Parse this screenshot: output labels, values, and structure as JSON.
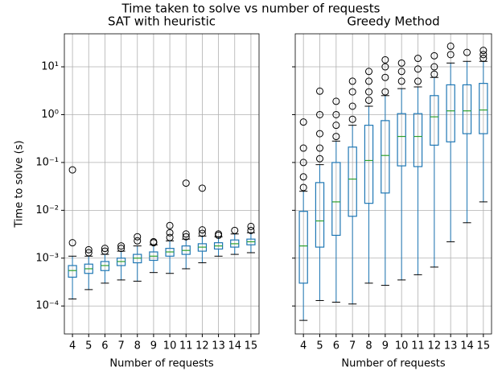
{
  "title": "Time taken to solve vs number of requests",
  "chart_data": [
    {
      "type": "box",
      "title": "SAT with heuristic",
      "xlabel": "Number of requests",
      "ylabel": "Time to solve (s)",
      "categories": [
        "4",
        "5",
        "6",
        "7",
        "8",
        "9",
        "10",
        "11",
        "12",
        "13",
        "14",
        "15"
      ],
      "log_y": true,
      "grid": true,
      "box_color": "#1f77b4",
      "median_color": "#2ca02c",
      "flier_color": "#000000",
      "ylim": [
        2.6e-05,
        49
      ],
      "yticks": [
        {
          "value": 0.0001,
          "label": "10⁻⁴"
        },
        {
          "value": 0.001,
          "label": "10⁻³"
        },
        {
          "value": 0.01,
          "label": "10⁻²"
        },
        {
          "value": 0.1,
          "label": "10⁻¹"
        },
        {
          "value": 1,
          "label": "10⁰"
        },
        {
          "value": 10,
          "label": "10¹"
        }
      ],
      "boxes": [
        {
          "whislo": 0.00014,
          "q1": 0.0004,
          "med": 0.00055,
          "q3": 0.0007,
          "whishi": 0.0011,
          "fliers": [
            0.0021,
            0.07
          ]
        },
        {
          "whislo": 0.00022,
          "q1": 0.00048,
          "med": 0.0006,
          "q3": 0.00075,
          "whishi": 0.0011,
          "fliers": [
            0.0013,
            0.0015
          ]
        },
        {
          "whislo": 0.0003,
          "q1": 0.00055,
          "med": 0.0007,
          "q3": 0.00085,
          "whishi": 0.0012,
          "fliers": [
            0.0014,
            0.0016
          ]
        },
        {
          "whislo": 0.00035,
          "q1": 0.0007,
          "med": 0.00085,
          "q3": 0.001,
          "whishi": 0.0014,
          "fliers": [
            0.0016,
            0.0018
          ]
        },
        {
          "whislo": 0.00033,
          "q1": 0.0008,
          "med": 0.001,
          "q3": 0.0012,
          "whishi": 0.0018,
          "fliers": [
            0.0023,
            0.0028
          ]
        },
        {
          "whislo": 0.0005,
          "q1": 0.0009,
          "med": 0.0011,
          "q3": 0.00135,
          "whishi": 0.0019,
          "fliers": [
            0.0021,
            0.0022
          ]
        },
        {
          "whislo": 0.00048,
          "q1": 0.0011,
          "med": 0.00135,
          "q3": 0.0016,
          "whishi": 0.0023,
          "fliers": [
            0.0027,
            0.0034,
            0.0048
          ]
        },
        {
          "whislo": 0.0006,
          "q1": 0.0012,
          "med": 0.00145,
          "q3": 0.0018,
          "whishi": 0.0025,
          "fliers": [
            0.0028,
            0.0032,
            0.037
          ]
        },
        {
          "whislo": 0.0008,
          "q1": 0.0014,
          "med": 0.0017,
          "q3": 0.002,
          "whishi": 0.0029,
          "fliers": [
            0.0033,
            0.0039,
            0.029
          ]
        },
        {
          "whislo": 0.0011,
          "q1": 0.00155,
          "med": 0.0018,
          "q3": 0.0021,
          "whishi": 0.0028,
          "fliers": [
            0.003,
            0.0032
          ]
        },
        {
          "whislo": 0.0012,
          "q1": 0.0017,
          "med": 0.002,
          "q3": 0.0024,
          "whishi": 0.0032,
          "fliers": [
            0.0038
          ]
        },
        {
          "whislo": 0.0013,
          "q1": 0.0019,
          "med": 0.0022,
          "q3": 0.0025,
          "whishi": 0.0034,
          "fliers": [
            0.0038,
            0.0046
          ]
        }
      ]
    },
    {
      "type": "box",
      "title": "Greedy Method",
      "xlabel": "Number of requests",
      "categories": [
        "4",
        "5",
        "6",
        "7",
        "8",
        "9",
        "10",
        "11",
        "12",
        "13",
        "14",
        "15"
      ],
      "log_y": true,
      "grid": true,
      "sharey": true,
      "box_color": "#1f77b4",
      "median_color": "#2ca02c",
      "flier_color": "#000000",
      "boxes": [
        {
          "whislo": 5e-05,
          "q1": 0.0003,
          "med": 0.0018,
          "q3": 0.0095,
          "whishi": 0.025,
          "fliers": [
            0.03,
            0.05,
            0.1,
            0.2,
            0.7
          ]
        },
        {
          "whislo": 0.00013,
          "q1": 0.0017,
          "med": 0.006,
          "q3": 0.038,
          "whishi": 0.09,
          "fliers": [
            0.12,
            0.2,
            0.4,
            1.0,
            3.1
          ]
        },
        {
          "whislo": 0.00012,
          "q1": 0.003,
          "med": 0.015,
          "q3": 0.1,
          "whishi": 0.28,
          "fliers": [
            0.35,
            0.6,
            1.0,
            1.9
          ]
        },
        {
          "whislo": 0.00011,
          "q1": 0.0075,
          "med": 0.045,
          "q3": 0.21,
          "whishi": 0.6,
          "fliers": [
            0.8,
            1.5,
            3,
            5
          ]
        },
        {
          "whislo": 0.0003,
          "q1": 0.014,
          "med": 0.11,
          "q3": 0.6,
          "whishi": 1.5,
          "fliers": [
            2,
            3,
            5,
            8
          ]
        },
        {
          "whislo": 0.00027,
          "q1": 0.023,
          "med": 0.14,
          "q3": 0.75,
          "whishi": 2.5,
          "fliers": [
            3,
            6,
            10,
            14
          ]
        },
        {
          "whislo": 0.00035,
          "q1": 0.085,
          "med": 0.35,
          "q3": 1.05,
          "whishi": 3.5,
          "fliers": [
            5,
            8,
            12
          ]
        },
        {
          "whislo": 0.00045,
          "q1": 0.082,
          "med": 0.35,
          "q3": 1.05,
          "whishi": 3.8,
          "fliers": [
            5,
            9,
            15
          ]
        },
        {
          "whislo": 0.00065,
          "q1": 0.23,
          "med": 0.9,
          "q3": 2.5,
          "whishi": 6,
          "fliers": [
            7,
            10,
            17
          ]
        },
        {
          "whislo": 0.0022,
          "q1": 0.27,
          "med": 1.2,
          "q3": 4.2,
          "whishi": 12,
          "fliers": [
            18,
            27
          ]
        },
        {
          "whislo": 0.0055,
          "q1": 0.4,
          "med": 1.2,
          "q3": 4.2,
          "whishi": 13,
          "fliers": [
            20
          ]
        },
        {
          "whislo": 0.015,
          "q1": 0.4,
          "med": 1.25,
          "q3": 4.5,
          "whishi": 13,
          "fliers": [
            15,
            18,
            22
          ]
        }
      ]
    }
  ]
}
